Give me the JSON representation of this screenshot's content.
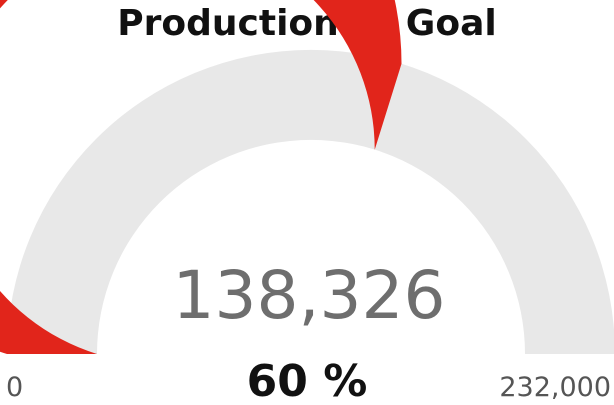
{
  "chart_data": {
    "type": "gauge",
    "title": "Production to Goal",
    "value": 138326,
    "value_label": "138,326",
    "min": 0,
    "max": 232000,
    "min_label": "0",
    "max_label": "232,000",
    "percent_label": "60 %",
    "colors": {
      "fill": "#e1251b",
      "track": "#e8e8e8"
    }
  }
}
